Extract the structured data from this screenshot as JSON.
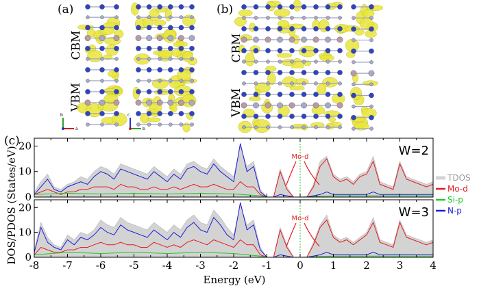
{
  "panels": {
    "a_label": "(a)",
    "b_label": "(b)",
    "c_label": "(c)",
    "cbm_label": "CBM",
    "vbm_label": "VBM",
    "axis_glyphs": {
      "b": "b",
      "a": "a",
      "c": "c"
    }
  },
  "colors": {
    "tdos": "#d3d3d3",
    "mo_d": "#e8191c",
    "si_p": "#22c722",
    "n_p": "#1c1cd8",
    "isosurface": "#e9e63c",
    "n_atom": "#2f44c0",
    "mo_atom": "#b89aa8",
    "si_atom": "#a9a8c6"
  },
  "chart_data": [
    {
      "type": "area",
      "panel": "W=2",
      "annotation": "W=2",
      "arrow_label": "Mo-d",
      "ylim": [
        0,
        22
      ],
      "yticks": [
        "0",
        "10",
        "20"
      ],
      "xlim": [
        -8,
        4
      ],
      "series": [
        {
          "name": "TDOS",
          "x": [
            -8,
            -7.8,
            -7.6,
            -7.4,
            -7.2,
            -7,
            -6.8,
            -6.6,
            -6.4,
            -6.2,
            -6,
            -5.8,
            -5.6,
            -5.4,
            -5.2,
            -5,
            -4.8,
            -4.6,
            -4.4,
            -4.2,
            -4,
            -3.8,
            -3.6,
            -3.4,
            -3.2,
            -3,
            -2.8,
            -2.6,
            -2.4,
            -2.2,
            -2,
            -1.8,
            -1.6,
            -1.4,
            -1.2,
            -1,
            -0.8,
            -0.6,
            -0.4,
            -0.2,
            0,
            0.2,
            0.4,
            0.6,
            0.8,
            1,
            1.2,
            1.4,
            1.6,
            1.8,
            2,
            2.2,
            2.4,
            2.6,
            2.8,
            3,
            3.2,
            3.4,
            3.6,
            3.8,
            4
          ],
          "y": [
            2,
            6,
            9,
            4,
            3,
            5,
            6,
            8,
            7,
            10,
            12,
            11,
            9,
            13,
            12,
            11,
            10,
            9,
            12,
            10,
            8,
            11,
            9,
            13,
            14,
            12,
            11,
            15,
            12,
            10,
            8,
            20,
            12,
            14,
            3,
            0,
            0,
            11,
            4,
            0,
            0,
            0,
            5,
            14,
            16,
            9,
            7,
            8,
            6,
            9,
            10,
            16,
            6,
            5,
            4,
            14,
            8,
            7,
            6,
            5,
            6
          ]
        },
        {
          "name": "Mo-d",
          "x": [
            -8,
            -7.8,
            -7.6,
            -7.4,
            -7.2,
            -7,
            -6.8,
            -6.6,
            -6.4,
            -6.2,
            -6,
            -5.8,
            -5.6,
            -5.4,
            -5.2,
            -5,
            -4.8,
            -4.6,
            -4.4,
            -4.2,
            -4,
            -3.8,
            -3.6,
            -3.4,
            -3.2,
            -3,
            -2.8,
            -2.6,
            -2.4,
            -2.2,
            -2,
            -1.8,
            -1.6,
            -1.4,
            -1.2,
            -1,
            -0.8,
            -0.6,
            -0.4,
            -0.2,
            0,
            0.2,
            0.4,
            0.6,
            0.8,
            1,
            1.2,
            1.4,
            1.6,
            1.8,
            2,
            2.2,
            2.4,
            2.6,
            2.8,
            3,
            3.2,
            3.4,
            3.6,
            3.8,
            4
          ],
          "y": [
            1,
            2,
            3,
            2,
            1,
            2,
            2,
            3,
            3,
            4,
            4,
            4,
            3,
            5,
            4,
            4,
            3,
            3,
            4,
            3,
            3,
            4,
            3,
            4,
            5,
            4,
            4,
            5,
            4,
            3,
            3,
            6,
            4,
            4,
            1,
            0,
            0,
            10,
            3,
            0,
            0,
            0,
            4,
            12,
            15,
            8,
            6,
            7,
            5,
            8,
            9,
            14,
            5,
            4,
            3,
            13,
            7,
            6,
            5,
            4,
            5
          ]
        },
        {
          "name": "Si-p",
          "x": [
            -8,
            -7,
            -6,
            -5,
            -4,
            -3,
            -2,
            -1.2,
            -1,
            0,
            1,
            2,
            3,
            4
          ],
          "y": [
            1,
            1.5,
            1.2,
            1.5,
            1.2,
            1.5,
            1.2,
            0.5,
            0,
            0,
            0.5,
            0.5,
            0.5,
            0.5
          ]
        },
        {
          "name": "N-p",
          "x": [
            -8,
            -7.8,
            -7.6,
            -7.4,
            -7.2,
            -7,
            -6.8,
            -6.6,
            -6.4,
            -6.2,
            -6,
            -5.8,
            -5.6,
            -5.4,
            -5.2,
            -5,
            -4.8,
            -4.6,
            -4.4,
            -4.2,
            -4,
            -3.8,
            -3.6,
            -3.4,
            -3.2,
            -3,
            -2.8,
            -2.6,
            -2.4,
            -2.2,
            -2,
            -1.8,
            -1.6,
            -1.4,
            -1.2,
            -1,
            -0.8,
            -0.6,
            -0.4,
            -0.2,
            0,
            0.2,
            0.4,
            0.6,
            0.8,
            1,
            1.2,
            1.4,
            1.6,
            1.8,
            2,
            2.2,
            2.4,
            2.6,
            2.8,
            3,
            3.2,
            3.4,
            3.6,
            3.8,
            4
          ],
          "y": [
            1,
            4,
            7,
            3,
            2,
            4,
            5,
            6,
            5,
            8,
            10,
            9,
            7,
            11,
            10,
            9,
            8,
            7,
            10,
            8,
            6,
            9,
            7,
            11,
            12,
            10,
            9,
            13,
            10,
            8,
            6,
            21,
            10,
            12,
            2,
            0,
            0,
            1,
            0.5,
            0,
            0,
            0,
            0.5,
            1,
            2,
            1,
            1,
            1,
            1,
            1,
            1,
            2,
            1,
            1,
            1,
            1,
            1,
            1,
            1,
            1,
            1
          ]
        }
      ]
    },
    {
      "type": "area",
      "panel": "W=3",
      "annotation": "W=3",
      "arrow_label": "Mo-d",
      "ylim": [
        0,
        22
      ],
      "yticks": [
        "0",
        "10",
        "20"
      ],
      "xlim": [
        -8,
        4
      ],
      "xticks": [
        "-8",
        "-7",
        "-6",
        "-5",
        "-4",
        "-3",
        "-2",
        "-1",
        "0",
        "1",
        "2",
        "3",
        "4"
      ],
      "xlabel": "Energy (eV)",
      "series": [
        {
          "name": "TDOS",
          "x": [
            -8,
            -7.8,
            -7.6,
            -7.4,
            -7.2,
            -7,
            -6.8,
            -6.6,
            -6.4,
            -6.2,
            -6,
            -5.8,
            -5.6,
            -5.4,
            -5.2,
            -5,
            -4.8,
            -4.6,
            -4.4,
            -4.2,
            -4,
            -3.8,
            -3.6,
            -3.4,
            -3.2,
            -3,
            -2.8,
            -2.6,
            -2.4,
            -2.2,
            -2,
            -1.8,
            -1.6,
            -1.4,
            -1.2,
            -1,
            -0.8,
            -0.6,
            -0.4,
            -0.2,
            0,
            0.2,
            0.4,
            0.6,
            0.8,
            1,
            1.2,
            1.4,
            1.6,
            1.8,
            2,
            2.2,
            2.4,
            2.6,
            2.8,
            3,
            3.2,
            3.4,
            3.6,
            3.8,
            4
          ],
          "y": [
            3,
            14,
            8,
            5,
            4,
            9,
            7,
            10,
            9,
            11,
            15,
            13,
            12,
            16,
            14,
            13,
            12,
            11,
            14,
            12,
            10,
            13,
            11,
            15,
            17,
            14,
            13,
            19,
            16,
            12,
            9,
            21,
            13,
            15,
            4,
            0,
            0,
            12,
            5,
            0,
            0,
            0,
            6,
            13,
            17,
            9,
            7,
            8,
            6,
            8,
            10,
            16,
            7,
            6,
            5,
            15,
            9,
            8,
            7,
            6,
            7
          ]
        },
        {
          "name": "Mo-d",
          "x": [
            -8,
            -7.8,
            -7.6,
            -7.4,
            -7.2,
            -7,
            -6.8,
            -6.6,
            -6.4,
            -6.2,
            -6,
            -5.8,
            -5.6,
            -5.4,
            -5.2,
            -5,
            -4.8,
            -4.6,
            -4.4,
            -4.2,
            -4,
            -3.8,
            -3.6,
            -3.4,
            -3.2,
            -3,
            -2.8,
            -2.6,
            -2.4,
            -2.2,
            -2,
            -1.8,
            -1.6,
            -1.4,
            -1.2,
            -1,
            -0.8,
            -0.6,
            -0.4,
            -0.2,
            0,
            0.2,
            0.4,
            0.6,
            0.8,
            1,
            1.2,
            1.4,
            1.6,
            1.8,
            2,
            2.2,
            2.4,
            2.6,
            2.8,
            3,
            3.2,
            3.4,
            3.6,
            3.8,
            4
          ],
          "y": [
            1,
            4,
            3,
            2,
            2,
            3,
            3,
            4,
            4,
            5,
            6,
            5,
            5,
            6,
            5,
            5,
            4,
            4,
            6,
            5,
            4,
            5,
            4,
            6,
            7,
            6,
            5,
            7,
            6,
            5,
            4,
            7,
            5,
            5,
            1,
            0,
            0,
            11,
            4,
            0,
            0,
            0,
            5,
            12,
            15,
            8,
            6,
            7,
            5,
            7,
            9,
            14,
            6,
            5,
            4,
            14,
            8,
            7,
            6,
            5,
            6
          ]
        },
        {
          "name": "Si-p",
          "x": [
            -8,
            -7,
            -6,
            -5,
            -4,
            -3,
            -2,
            -1.2,
            -1,
            0,
            1,
            2,
            3,
            4
          ],
          "y": [
            1,
            2,
            1.5,
            2,
            1.5,
            2,
            1.5,
            0.5,
            0,
            0,
            0.5,
            0.5,
            0.5,
            0.5
          ]
        },
        {
          "name": "N-p",
          "x": [
            -8,
            -7.8,
            -7.6,
            -7.4,
            -7.2,
            -7,
            -6.8,
            -6.6,
            -6.4,
            -6.2,
            -6,
            -5.8,
            -5.6,
            -5.4,
            -5.2,
            -5,
            -4.8,
            -4.6,
            -4.4,
            -4.2,
            -4,
            -3.8,
            -3.6,
            -3.4,
            -3.2,
            -3,
            -2.8,
            -2.6,
            -2.4,
            -2.2,
            -2,
            -1.8,
            -1.6,
            -1.4,
            -1.2,
            -1,
            -0.8,
            -0.6,
            -0.4,
            -0.2,
            0,
            0.2,
            0.4,
            0.6,
            0.8,
            1,
            1.2,
            1.4,
            1.6,
            1.8,
            2,
            2.2,
            2.4,
            2.6,
            2.8,
            3,
            3.2,
            3.4,
            3.6,
            3.8,
            4
          ],
          "y": [
            2,
            12,
            6,
            4,
            3,
            7,
            5,
            8,
            7,
            9,
            12,
            10,
            9,
            13,
            11,
            10,
            9,
            8,
            11,
            9,
            7,
            10,
            8,
            12,
            14,
            11,
            10,
            16,
            13,
            9,
            7,
            22,
            11,
            13,
            3,
            0,
            0,
            1,
            0.5,
            0,
            0,
            0,
            0.5,
            1,
            2,
            1,
            1,
            1,
            1,
            1,
            1,
            2,
            1,
            1,
            1,
            1,
            1,
            1,
            1,
            1,
            1
          ]
        }
      ]
    }
  ],
  "axes": {
    "ylabel": "DOS/PDOS (States/eV)",
    "xlabel": "Energy (eV)"
  },
  "legend": {
    "placement": "right",
    "items": [
      "TDOS",
      "Mo-d",
      "Si-p",
      "N-p"
    ]
  }
}
